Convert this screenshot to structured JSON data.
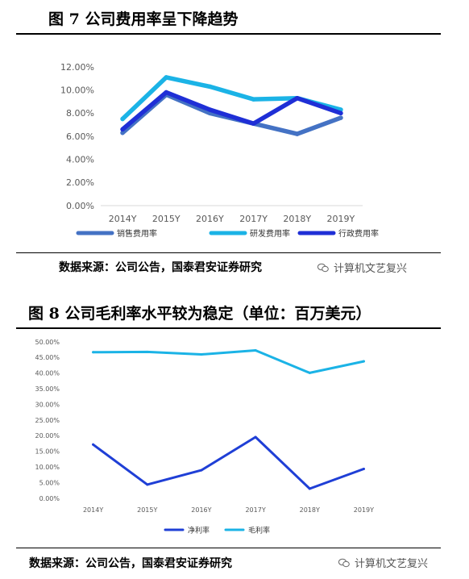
{
  "figure7": {
    "title": "图 7 公司费用率呈下降趋势",
    "source": "数据来源：公司公告，国泰君安证券研究"
  },
  "figure8": {
    "title": "图 8 公司毛利率水平较为稳定（单位：百万美元）",
    "source": "数据来源：公司公告，国泰君安证券研究"
  },
  "watermark": {
    "text": "计算机文艺复兴",
    "icon": "wechat-icon"
  },
  "chart_data": [
    {
      "type": "line",
      "x": [
        "2014Y",
        "2015Y",
        "2016Y",
        "2017Y",
        "2018Y",
        "2019Y"
      ],
      "ylim": [
        0,
        12
      ],
      "yticks": [
        "0.00%",
        "2.00%",
        "4.00%",
        "6.00%",
        "8.00%",
        "10.00%",
        "12.00%"
      ],
      "legend_position": "bottom",
      "grid": false,
      "series": [
        {
          "name": "销售费用率",
          "color": "#4472C4",
          "values": [
            6.3,
            9.6,
            8.0,
            7.1,
            6.2,
            7.6
          ]
        },
        {
          "name": "研发费用率",
          "color": "#1BB3E6",
          "values": [
            7.5,
            11.1,
            10.3,
            9.2,
            9.3,
            8.3
          ]
        },
        {
          "name": "行政费用率",
          "color": "#1F2FD6",
          "values": [
            6.6,
            9.8,
            8.3,
            7.1,
            9.3,
            8.0
          ]
        }
      ]
    },
    {
      "type": "line",
      "x": [
        "2014Y",
        "2015Y",
        "2016Y",
        "2017Y",
        "2018Y",
        "2019Y"
      ],
      "ylim": [
        0,
        50
      ],
      "yticks": [
        "0.00%",
        "5.00%",
        "10.00%",
        "15.00%",
        "20.00%",
        "25.00%",
        "30.00%",
        "35.00%",
        "40.00%",
        "45.00%",
        "50.00%"
      ],
      "legend_position": "bottom",
      "grid": false,
      "series": [
        {
          "name": "净利率",
          "color": "#1F3FD6",
          "values": [
            17.2,
            4.4,
            9.0,
            19.6,
            3.1,
            9.4
          ]
        },
        {
          "name": "毛利率",
          "color": "#1BB3E6",
          "values": [
            46.7,
            46.8,
            46.0,
            47.3,
            40.1,
            43.8
          ]
        }
      ]
    }
  ]
}
